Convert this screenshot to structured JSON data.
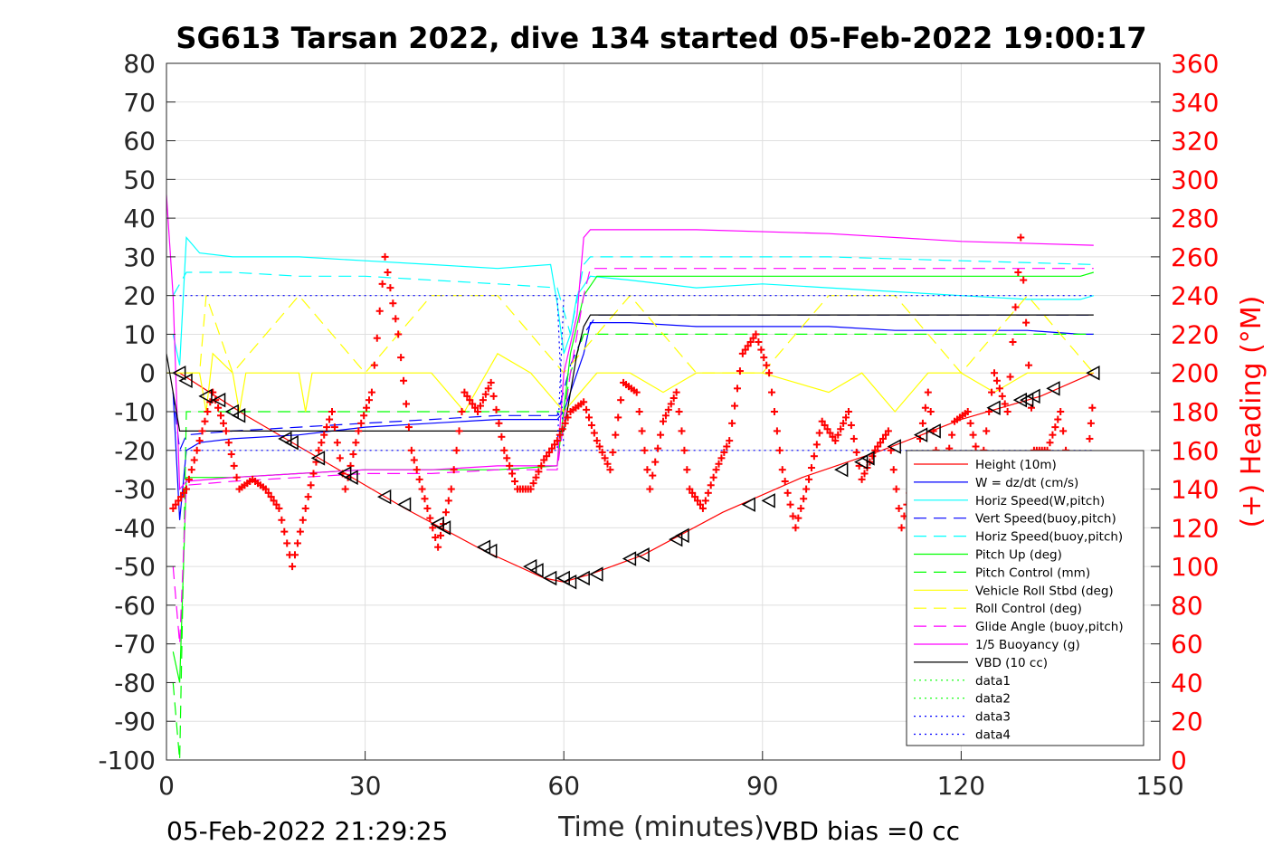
{
  "chart_data": {
    "type": "line",
    "title": "SG613 Tarsan 2022, dive 134 started 05-Feb-2022 19:00:17",
    "xlabel": "Time (minutes)",
    "ylabel_right": "(+) Heading (°M)",
    "xlim": [
      0,
      150
    ],
    "ylim_left": [
      -100,
      80
    ],
    "ylim_right": [
      0,
      360
    ],
    "x_ticks": [
      "0",
      "30",
      "60",
      "90",
      "120",
      "150"
    ],
    "y_ticks_left": [
      "80",
      "70",
      "60",
      "50",
      "40",
      "30",
      "20",
      "10",
      "0",
      "-10",
      "-20",
      "-30",
      "-40",
      "-50",
      "-60",
      "-70",
      "-80",
      "-90",
      "-100"
    ],
    "y_ticks_right": [
      "360",
      "340",
      "320",
      "300",
      "280",
      "260",
      "240",
      "220",
      "200",
      "180",
      "160",
      "140",
      "120",
      "100",
      "80",
      "60",
      "40",
      "20",
      "0"
    ],
    "grid": true,
    "legend_position": "bottom-right",
    "footer_left": "05-Feb-2022 21:29:25",
    "footer_right": "VBD bias =0 cc",
    "series": [
      {
        "name": "Height (10m)",
        "color": "#ff0000",
        "style": "solid",
        "x": [
          2,
          12,
          24,
          36,
          48,
          57,
          60,
          62,
          64,
          72,
          84,
          96,
          108,
          120,
          132,
          140
        ],
        "y": [
          0,
          -11,
          -23,
          -35,
          -46,
          -53,
          -54,
          -53,
          -52,
          -47,
          -36,
          -27,
          -20,
          -12,
          -6,
          0
        ]
      },
      {
        "name": "W = dz/dt (cm/s)",
        "color": "#0000ff",
        "style": "solid",
        "x": [
          1,
          2,
          3,
          5,
          10,
          20,
          30,
          40,
          50,
          59,
          60,
          61,
          63,
          64,
          70,
          80,
          90,
          100,
          110,
          120,
          130,
          138,
          140
        ],
        "y": [
          -5,
          -38,
          -20,
          -18,
          -17,
          -16,
          -14,
          -13,
          -12,
          -12,
          -10,
          -5,
          5,
          13,
          13,
          12,
          12,
          12,
          11,
          11,
          11,
          10,
          10
        ]
      },
      {
        "name": "Horiz Speed(W,pitch)",
        "color": "#00ffff",
        "style": "solid",
        "x": [
          1,
          2,
          3,
          5,
          10,
          20,
          30,
          40,
          50,
          58,
          59,
          60,
          61,
          62,
          64,
          70,
          80,
          90,
          100,
          110,
          120,
          130,
          138,
          140
        ],
        "y": [
          10,
          2,
          35,
          31,
          30,
          30,
          29,
          28,
          27,
          28,
          18,
          5,
          10,
          20,
          25,
          24,
          22,
          23,
          22,
          21,
          20,
          19,
          19,
          20
        ]
      },
      {
        "name": "Vert Speed(buoy,pitch)",
        "color": "#0000ff",
        "style": "dashed",
        "x": [
          1,
          2,
          3,
          10,
          20,
          30,
          40,
          50,
          59,
          61,
          63,
          65,
          80,
          100,
          120,
          140
        ],
        "y": [
          -5,
          -20,
          -16,
          -15,
          -14,
          -13,
          -12,
          -11,
          -11,
          2,
          10,
          15,
          15,
          15,
          15,
          15
        ]
      },
      {
        "name": "Horiz Speed(buoy,pitch)",
        "color": "#00ffff",
        "style": "dashed",
        "x": [
          1,
          3,
          10,
          20,
          30,
          40,
          50,
          59,
          61,
          63,
          64,
          80,
          100,
          120,
          140
        ],
        "y": [
          20,
          26,
          26,
          25,
          25,
          24,
          23,
          22,
          10,
          28,
          30,
          30,
          30,
          29,
          28
        ]
      },
      {
        "name": "Pitch Up (deg)",
        "color": "#00ff00",
        "style": "solid",
        "x": [
          1,
          2,
          3,
          10,
          20,
          30,
          40,
          50,
          59,
          61,
          63,
          65,
          80,
          100,
          120,
          138,
          140
        ],
        "y": [
          -72,
          -80,
          -27,
          -27,
          -26,
          -25,
          -25,
          -25,
          -24,
          5,
          20,
          25,
          25,
          25,
          25,
          25,
          26
        ]
      },
      {
        "name": "Pitch Control (mm)",
        "color": "#00ff00",
        "style": "dashed",
        "x": [
          1,
          2,
          3,
          59,
          60,
          61,
          63,
          140
        ],
        "y": [
          -80,
          -100,
          -10,
          -10,
          -10,
          0,
          10,
          10
        ]
      },
      {
        "name": "Vehicle Roll Stbd (deg)",
        "color": "#ffff00",
        "style": "solid",
        "x": [
          0,
          5,
          6,
          7,
          10,
          11,
          12,
          20,
          21,
          22,
          30,
          40,
          45,
          50,
          55,
          60,
          65,
          70,
          75,
          80,
          90,
          100,
          105,
          110,
          115,
          120,
          125,
          130,
          135,
          140
        ],
        "y": [
          0,
          0,
          -10,
          5,
          0,
          -10,
          0,
          0,
          -10,
          0,
          0,
          0,
          -10,
          5,
          0,
          -10,
          0,
          0,
          -5,
          0,
          0,
          -5,
          0,
          -10,
          0,
          0,
          -5,
          0,
          0,
          0
        ]
      },
      {
        "name": "Roll Control (deg)",
        "color": "#ffff00",
        "style": "dashed",
        "x": [
          0,
          5,
          6,
          10,
          20,
          30,
          40,
          50,
          60,
          70,
          80,
          90,
          100,
          110,
          120,
          130,
          140
        ],
        "y": [
          0,
          0,
          20,
          0,
          20,
          0,
          20,
          20,
          0,
          20,
          0,
          0,
          20,
          20,
          0,
          20,
          0
        ]
      },
      {
        "name": "Glide Angle (buoy,pitch)",
        "color": "#ff00ff",
        "style": "dashed",
        "x": [
          1,
          2,
          3,
          10,
          20,
          30,
          40,
          50,
          59,
          61,
          63,
          64,
          80,
          100,
          120,
          140
        ],
        "y": [
          -50,
          -70,
          -29,
          -28,
          -27,
          -26,
          -26,
          -25,
          -25,
          0,
          20,
          27,
          27,
          27,
          27,
          27
        ]
      },
      {
        "name": "1/5 Buoyancy (g)",
        "color": "#ff00ff",
        "style": "solid",
        "x": [
          0,
          1,
          2,
          3,
          10,
          20,
          30,
          40,
          50,
          59,
          60,
          62,
          63,
          64,
          80,
          100,
          120,
          140
        ],
        "y": [
          46,
          20,
          -30,
          -28,
          -27,
          -26,
          -25,
          -25,
          -24,
          -24,
          0,
          15,
          35,
          37,
          37,
          36,
          34,
          33
        ]
      },
      {
        "name": "VBD (10 cc)",
        "color": "#000000",
        "style": "solid",
        "x": [
          0,
          1,
          2,
          3,
          59,
          60,
          61,
          62,
          63,
          64,
          140
        ],
        "y": [
          5,
          -5,
          -15,
          -15,
          -15,
          -15,
          -5,
          5,
          12,
          15,
          15
        ]
      },
      {
        "name": "data1",
        "color": "#00ff00",
        "style": "dotted",
        "x": [],
        "y": []
      },
      {
        "name": "data2",
        "color": "#00ff00",
        "style": "dotted",
        "x": [],
        "y": []
      },
      {
        "name": "data3",
        "color": "#0000ff",
        "style": "dotted",
        "x": [
          2,
          59,
          60,
          140
        ],
        "y": [
          20,
          20,
          -20,
          -20
        ]
      },
      {
        "name": "data4",
        "color": "#0000ff",
        "style": "dotted",
        "x": [
          2,
          59,
          60,
          140
        ],
        "y": [
          -20,
          -20,
          20,
          20
        ]
      }
    ],
    "heading_series": {
      "color": "#ff0000",
      "marker": "+",
      "x": [
        1,
        3,
        5,
        7,
        9,
        11,
        13,
        15,
        17,
        19,
        21,
        23,
        25,
        27,
        29,
        31,
        33,
        35,
        37,
        39,
        41,
        43,
        45,
        47,
        49,
        51,
        53,
        55,
        57,
        59,
        61,
        63,
        65,
        67,
        69,
        71,
        73,
        75,
        77,
        79,
        81,
        83,
        85,
        87,
        89,
        91,
        93,
        95,
        97,
        99,
        101,
        103,
        105,
        107,
        109,
        111,
        113,
        115,
        117,
        119,
        121,
        123,
        125,
        127,
        129,
        131,
        133,
        135,
        137,
        139,
        140
      ],
      "y": [
        130,
        140,
        165,
        190,
        170,
        140,
        145,
        140,
        130,
        100,
        130,
        160,
        180,
        140,
        170,
        190,
        260,
        220,
        160,
        135,
        110,
        140,
        190,
        180,
        195,
        160,
        140,
        140,
        155,
        165,
        180,
        185,
        165,
        150,
        195,
        190,
        140,
        175,
        190,
        140,
        130,
        150,
        165,
        210,
        220,
        200,
        150,
        120,
        145,
        175,
        165,
        180,
        145,
        160,
        170,
        120,
        150,
        190,
        140,
        175,
        180,
        150,
        200,
        180,
        270,
        160,
        160,
        180,
        130,
        150,
        190
      ]
    },
    "vbd_triangles": {
      "x": [
        2,
        3,
        6,
        8,
        10,
        11,
        18,
        19,
        23,
        27,
        28,
        33,
        36,
        41,
        42,
        48,
        49,
        55,
        56,
        58,
        60,
        61,
        63,
        65,
        70,
        72,
        77,
        78,
        88,
        91,
        102,
        105,
        106,
        110,
        114,
        116,
        125,
        129,
        130,
        131,
        134,
        140
      ],
      "y": [
        0,
        -2,
        -6,
        -7,
        -10,
        -11,
        -17,
        -18,
        -22,
        -26,
        -27,
        -32,
        -34,
        -39,
        -40,
        -45,
        -46,
        -50,
        -51,
        -53,
        -53,
        -54,
        -53,
        -52,
        -48,
        -47,
        -43,
        -42,
        -34,
        -33,
        -25,
        -23,
        -22,
        -19,
        -16,
        -15,
        -9,
        -7,
        -7,
        -6,
        -4,
        0
      ]
    }
  }
}
